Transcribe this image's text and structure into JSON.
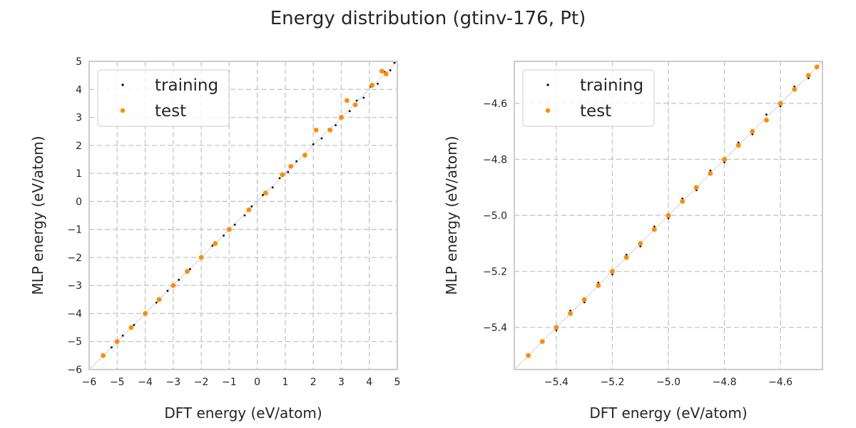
{
  "figure": {
    "title": "Energy distribution (gtinv-176, Pt)"
  },
  "colors": {
    "training": "#000000",
    "test": "#ff8c00"
  },
  "chart_data": [
    {
      "type": "scatter",
      "xlabel": "DFT energy (eV/atom)",
      "ylabel": "MLP energy (eV/atom)",
      "xlim": [
        -6,
        5
      ],
      "ylim": [
        -6,
        5
      ],
      "xticks": [
        "−6",
        "−5",
        "−4",
        "−3",
        "−2",
        "−1",
        "0",
        "1",
        "2",
        "3",
        "4",
        "5"
      ],
      "yticks": [
        "−6",
        "−5",
        "−4",
        "−3",
        "−2",
        "−1",
        "0",
        "1",
        "2",
        "3",
        "4",
        "5"
      ],
      "grid": true,
      "legend_position": "top-left",
      "reference_line": "y = x",
      "series": [
        {
          "name": "training",
          "points": [
            [
              -5.5,
              -5.5
            ],
            [
              -5.2,
              -5.21
            ],
            [
              -4.8,
              -4.79
            ],
            [
              -4.4,
              -4.41
            ],
            [
              -4.0,
              -4.0
            ],
            [
              -3.6,
              -3.61
            ],
            [
              -3.2,
              -3.19
            ],
            [
              -2.8,
              -2.8
            ],
            [
              -2.4,
              -2.42
            ],
            [
              -2.0,
              -2.01
            ],
            [
              -1.6,
              -1.58
            ],
            [
              -1.2,
              -1.22
            ],
            [
              -0.8,
              -0.83
            ],
            [
              -0.45,
              -0.5
            ],
            [
              -0.2,
              -0.18
            ],
            [
              0.2,
              0.23
            ],
            [
              0.55,
              0.5
            ],
            [
              0.8,
              0.83
            ],
            [
              1.1,
              1.05
            ],
            [
              1.4,
              1.43
            ],
            [
              1.7,
              1.66
            ],
            [
              2.0,
              2.04
            ],
            [
              2.3,
              2.25
            ],
            [
              2.55,
              2.58
            ],
            [
              2.8,
              2.72
            ],
            [
              3.0,
              3.05
            ],
            [
              3.3,
              3.22
            ],
            [
              3.55,
              3.6
            ],
            [
              3.8,
              3.7
            ],
            [
              4.05,
              4.1
            ],
            [
              4.3,
              4.2
            ],
            [
              4.55,
              4.62
            ],
            [
              4.75,
              4.68
            ],
            [
              4.9,
              4.95
            ]
          ]
        },
        {
          "name": "test",
          "points": [
            [
              -5.5,
              -5.5
            ],
            [
              -5.0,
              -5.0
            ],
            [
              -4.5,
              -4.5
            ],
            [
              -4.0,
              -4.0
            ],
            [
              -3.5,
              -3.5
            ],
            [
              -3.0,
              -3.0
            ],
            [
              -2.5,
              -2.5
            ],
            [
              -2.0,
              -2.0
            ],
            [
              -1.5,
              -1.5
            ],
            [
              -1.0,
              -1.0
            ],
            [
              -0.3,
              -0.3
            ],
            [
              0.3,
              0.3
            ],
            [
              0.9,
              0.95
            ],
            [
              1.2,
              1.25
            ],
            [
              1.7,
              1.65
            ],
            [
              2.1,
              2.55
            ],
            [
              2.6,
              2.55
            ],
            [
              3.0,
              3.0
            ],
            [
              3.2,
              3.6
            ],
            [
              3.5,
              3.45
            ],
            [
              4.1,
              4.15
            ],
            [
              4.45,
              4.65
            ],
            [
              4.6,
              4.55
            ]
          ]
        }
      ]
    },
    {
      "type": "scatter",
      "xlabel": "DFT energy (eV/atom)",
      "ylabel": "MLP energy (eV/atom)",
      "xlim": [
        -5.55,
        -4.45
      ],
      "ylim": [
        -5.55,
        -4.45
      ],
      "xticks": [
        "−5.4",
        "−5.2",
        "−5.0",
        "−4.8",
        "−4.6"
      ],
      "yticks": [
        "−5.4",
        "−5.2",
        "−5.0",
        "−4.8",
        "−4.6"
      ],
      "grid": true,
      "legend_position": "top-left",
      "reference_line": "y = x",
      "series": [
        {
          "name": "training",
          "points": [
            [
              -5.5,
              -5.5
            ],
            [
              -5.45,
              -5.45
            ],
            [
              -5.4,
              -5.41
            ],
            [
              -5.35,
              -5.34
            ],
            [
              -5.3,
              -5.31
            ],
            [
              -5.25,
              -5.24
            ],
            [
              -5.2,
              -5.21
            ],
            [
              -5.15,
              -5.14
            ],
            [
              -5.1,
              -5.11
            ],
            [
              -5.05,
              -5.04
            ],
            [
              -5.0,
              -5.01
            ],
            [
              -4.95,
              -4.94
            ],
            [
              -4.9,
              -4.91
            ],
            [
              -4.85,
              -4.84
            ],
            [
              -4.8,
              -4.81
            ],
            [
              -4.75,
              -4.74
            ],
            [
              -4.7,
              -4.71
            ],
            [
              -4.65,
              -4.64
            ],
            [
              -4.6,
              -4.61
            ],
            [
              -4.55,
              -4.54
            ],
            [
              -4.5,
              -4.51
            ],
            [
              -4.47,
              -4.47
            ]
          ]
        },
        {
          "name": "test",
          "points": [
            [
              -5.5,
              -5.5
            ],
            [
              -5.45,
              -5.45
            ],
            [
              -5.4,
              -5.4
            ],
            [
              -5.35,
              -5.35
            ],
            [
              -5.3,
              -5.3
            ],
            [
              -5.25,
              -5.25
            ],
            [
              -5.2,
              -5.2
            ],
            [
              -5.15,
              -5.15
            ],
            [
              -5.1,
              -5.1
            ],
            [
              -5.05,
              -5.05
            ],
            [
              -5.0,
              -5.0
            ],
            [
              -4.95,
              -4.95
            ],
            [
              -4.9,
              -4.9
            ],
            [
              -4.85,
              -4.85
            ],
            [
              -4.8,
              -4.8
            ],
            [
              -4.75,
              -4.75
            ],
            [
              -4.7,
              -4.7
            ],
            [
              -4.65,
              -4.66
            ],
            [
              -4.6,
              -4.6
            ],
            [
              -4.55,
              -4.55
            ],
            [
              -4.5,
              -4.5
            ],
            [
              -4.47,
              -4.47
            ]
          ]
        }
      ]
    }
  ]
}
